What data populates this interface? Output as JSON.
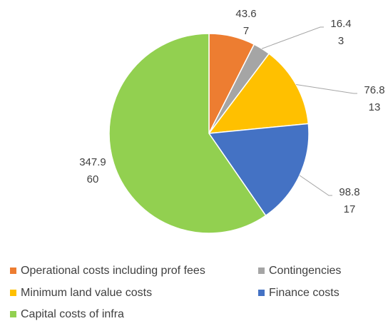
{
  "chart_data": {
    "type": "pie",
    "categories": [
      "Operational costs including prof fees",
      "Contingencies",
      "Minimum land value costs",
      "Finance costs",
      "Capital costs of infra"
    ],
    "values": [
      43.6,
      16.4,
      76.8,
      98.8,
      347.9
    ],
    "percentages": [
      7,
      3,
      13,
      17,
      60
    ],
    "colors": [
      "#ed7d31",
      "#a5a5a5",
      "#ffc000",
      "#4472c4",
      "#92d050"
    ]
  }
}
